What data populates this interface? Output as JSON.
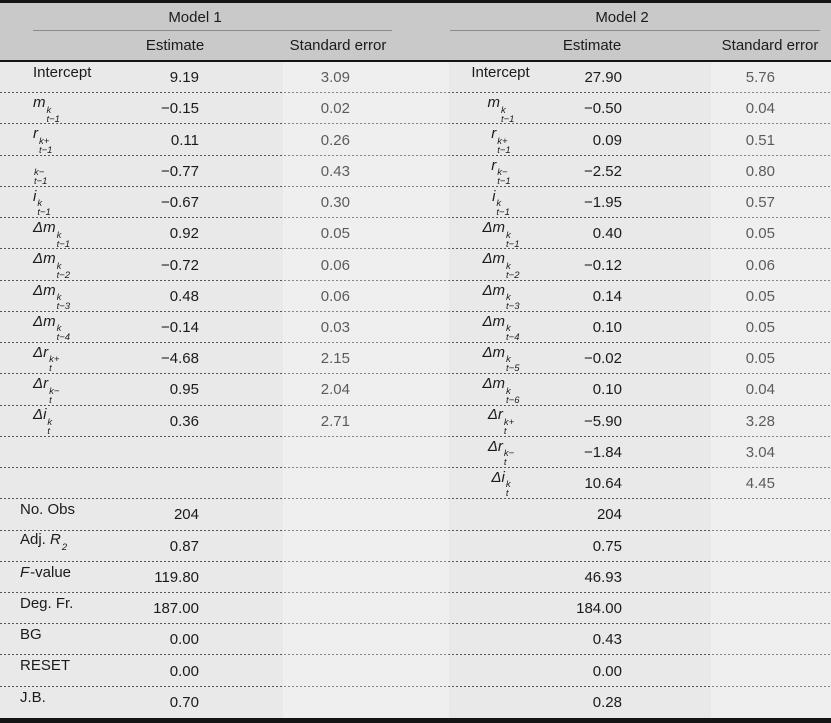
{
  "header": {
    "model1": "Model 1",
    "model2": "Model 2",
    "estimate": "Estimate",
    "stderr": "Standard error"
  },
  "rows": [
    {
      "l1": {
        "pre": "Intercept"
      },
      "e1": "9.19",
      "s1": "3.09",
      "l2": {
        "pre": "Intercept"
      },
      "e2": "27.90",
      "s2": "5.76"
    },
    {
      "l1": {
        "base": "m",
        "sup": "k",
        "sub": "t−1"
      },
      "e1": "−0.15",
      "s1": "0.02",
      "l2": {
        "base": "m",
        "sup": "k",
        "sub": "t−1"
      },
      "e2": "−0.50",
      "s2": "0.04"
    },
    {
      "l1": {
        "base": "r",
        "sup": "k+",
        "sub": "t−1"
      },
      "e1": "0.11",
      "s1": "0.26",
      "l2": {
        "base": "r",
        "sup": "k+",
        "sub": "t−1"
      },
      "e2": "0.09",
      "s2": "0.51"
    },
    {
      "l1": {
        "sup": "k−",
        "sub": "t−1"
      },
      "e1": "−0.77",
      "s1": "0.43",
      "l2": {
        "base": "r",
        "sup": "k−",
        "sub": "t−1"
      },
      "e2": "−2.52",
      "s2": "0.80"
    },
    {
      "l1": {
        "base": "i",
        "sup": "k",
        "sub": "t−1"
      },
      "e1": "−0.67",
      "s1": "0.30",
      "l2": {
        "base": "i",
        "sup": "k",
        "sub": "t−1"
      },
      "e2": "−1.95",
      "s2": "0.57"
    },
    {
      "l1": {
        "base": "Δm",
        "sup": "k",
        "sub": "t−1"
      },
      "e1": "0.92",
      "s1": "0.05",
      "l2": {
        "base": "Δm",
        "sup": "k",
        "sub": "t−1"
      },
      "e2": "0.40",
      "s2": "0.05"
    },
    {
      "l1": {
        "base": "Δm",
        "sup": "k",
        "sub": "t−2"
      },
      "e1": "−0.72",
      "s1": "0.06",
      "l2": {
        "base": "Δm",
        "sup": "k",
        "sub": "t−2"
      },
      "e2": "−0.12",
      "s2": "0.06"
    },
    {
      "l1": {
        "base": "Δm",
        "sup": "k",
        "sub": "t−3"
      },
      "e1": "0.48",
      "s1": "0.06",
      "l2": {
        "base": "Δm",
        "sup": "k",
        "sub": "t−3"
      },
      "e2": "0.14",
      "s2": "0.05"
    },
    {
      "l1": {
        "base": "Δm",
        "sup": "k",
        "sub": "t−4"
      },
      "e1": "−0.14",
      "s1": "0.03",
      "l2": {
        "base": "Δm",
        "sup": "k",
        "sub": "t−4"
      },
      "e2": "0.10",
      "s2": "0.05"
    },
    {
      "l1": {
        "base": "Δr",
        "sup": "k+",
        "sub": "t"
      },
      "e1": "−4.68",
      "s1": "2.15",
      "l2": {
        "base": "Δm",
        "sup": "k",
        "sub": "t−5"
      },
      "e2": "−0.02",
      "s2": "0.05"
    },
    {
      "l1": {
        "base": "Δr",
        "sup": "k−",
        "sub": "t"
      },
      "e1": "0.95",
      "s1": "2.04",
      "l2": {
        "base": "Δm",
        "sup": "k",
        "sub": "t−6"
      },
      "e2": "0.10",
      "s2": "0.04"
    },
    {
      "l1": {
        "base": "Δi",
        "sup": "k",
        "sub": "t"
      },
      "e1": "0.36",
      "s1": "2.71",
      "l2": {
        "base": "Δr",
        "sup": "k+",
        "sub": "t"
      },
      "e2": "−5.90",
      "s2": "3.28"
    },
    {
      "l2": {
        "base": "Δr",
        "sup": "k−",
        "sub": "t"
      },
      "e2": "−1.84",
      "s2": "3.04"
    },
    {
      "l2": {
        "base": "Δi",
        "sup": "k",
        "sub": "t"
      },
      "e2": "10.64",
      "s2": "4.45"
    }
  ],
  "stats": [
    {
      "l": {
        "pre": "No. Obs"
      },
      "v1": "204",
      "v2": "204"
    },
    {
      "l": {
        "pre": "Adj. ",
        "base": "R",
        "sup": "2"
      },
      "v1": "0.87",
      "v2": "0.75"
    },
    {
      "l": {
        "base": "F",
        "post": "-value"
      },
      "v1": "119.80",
      "v2": "46.93"
    },
    {
      "l": {
        "pre": "Deg. Fr."
      },
      "v1": "187.00",
      "v2": "184.00"
    },
    {
      "l": {
        "pre": "BG"
      },
      "v1": "0.00",
      "v2": "0.43"
    },
    {
      "l": {
        "pre": "RESET"
      },
      "v1": "0.00",
      "v2": "0.00"
    },
    {
      "l": {
        "pre": "J.B."
      },
      "v1": "0.70",
      "v2": "0.28"
    }
  ],
  "colors": {
    "header_bg": "#c9c9c9",
    "body_bg": "#e9e9e9",
    "rule_black": "#141414",
    "rule_gray": "#8a8a8a",
    "dash": "#565656",
    "text": "#1b1b1b"
  }
}
